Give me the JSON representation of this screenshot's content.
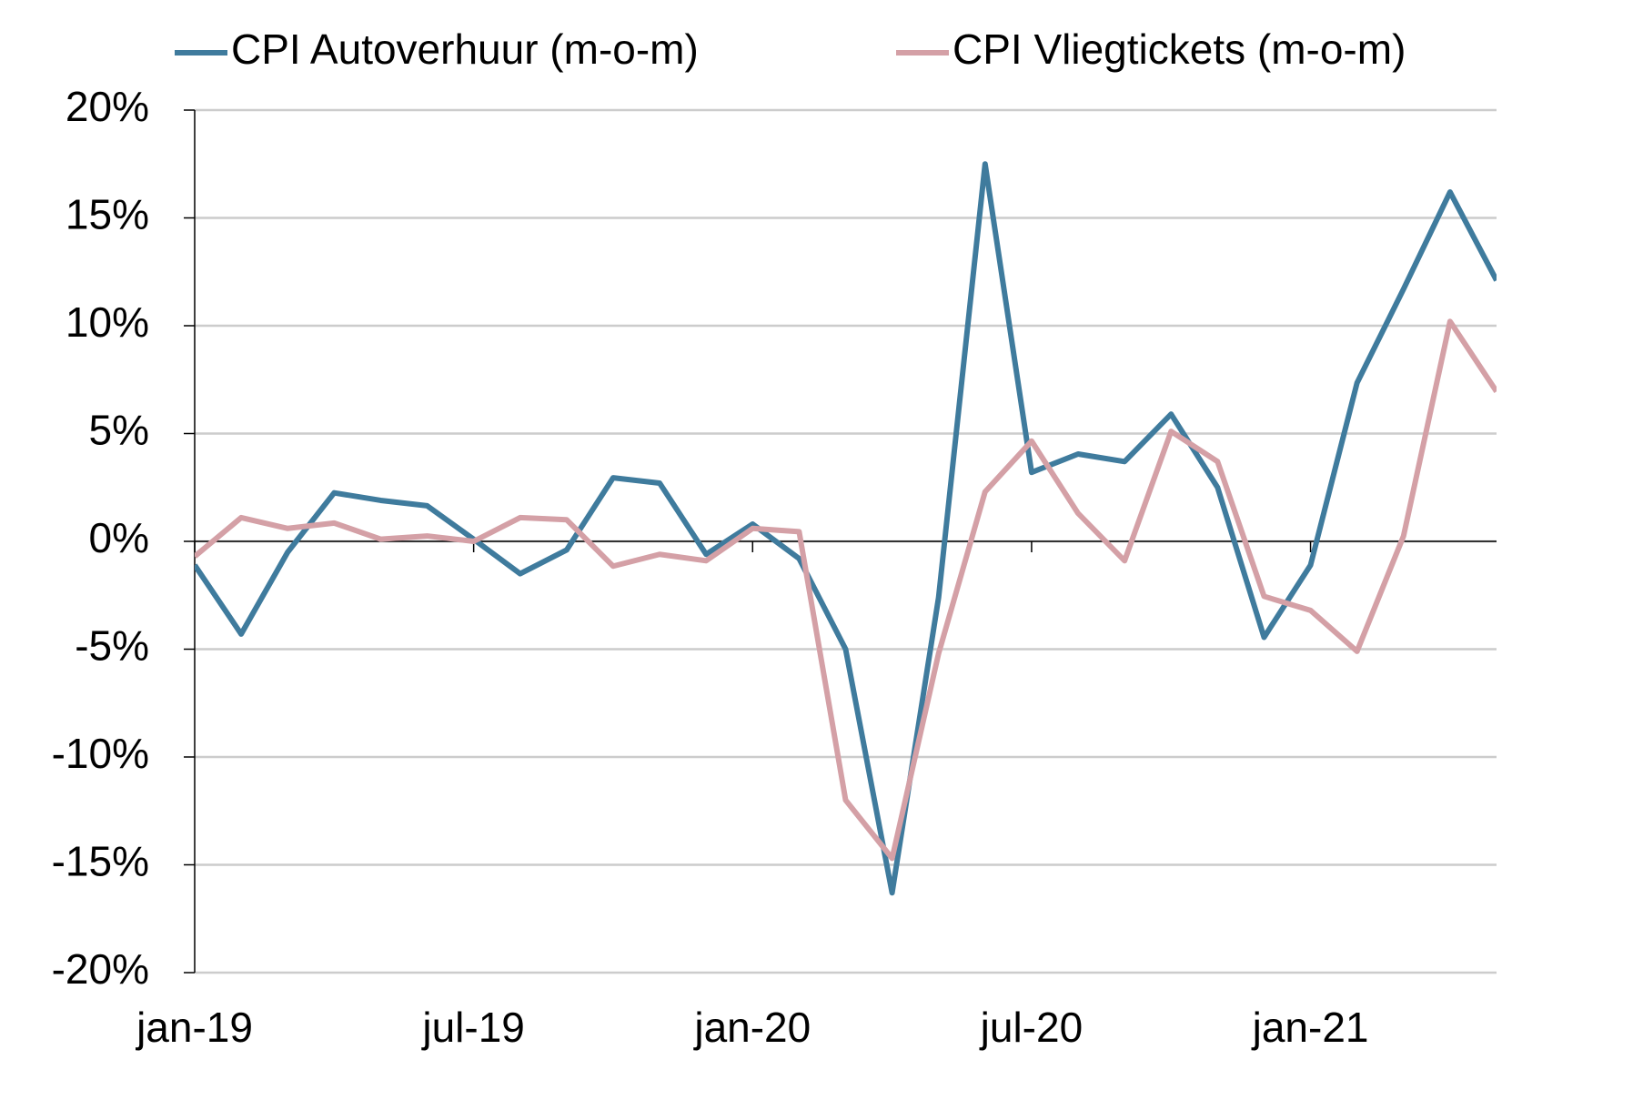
{
  "chart_data": {
    "type": "line",
    "categories": [
      "jan-19",
      null,
      null,
      null,
      null,
      null,
      "jul-19",
      null,
      null,
      null,
      null,
      null,
      "jan-20",
      null,
      null,
      null,
      null,
      null,
      "jul-20",
      null,
      null,
      null,
      null,
      null,
      "jan-21",
      null,
      null,
      null,
      null
    ],
    "series": [
      {
        "name": "CPI Autoverhuur (m-o-m)",
        "color": "#3f7b9d",
        "values": [
          -1.1,
          -4.3,
          -0.5,
          2.25,
          1.9,
          1.65,
          0.1,
          -1.5,
          -0.4,
          2.95,
          2.7,
          -0.6,
          0.8,
          -0.8,
          -5.0,
          -16.3,
          -2.6,
          17.5,
          3.2,
          4.05,
          3.7,
          5.9,
          2.5,
          -4.45,
          -1.1,
          7.35,
          11.7,
          16.2,
          12.1
        ]
      },
      {
        "name": "CPI Vliegtickets (m-o-m)",
        "color": "#d4a0a6",
        "values": [
          -0.7,
          1.1,
          0.6,
          0.85,
          0.1,
          0.25,
          0,
          1.1,
          1.0,
          -1.15,
          -0.6,
          -0.9,
          0.6,
          0.45,
          -12.0,
          -14.7,
          -5.2,
          2.3,
          4.65,
          1.3,
          -0.9,
          5.1,
          3.7,
          -2.55,
          -3.2,
          -5.1,
          0.25,
          10.2,
          6.95
        ]
      }
    ],
    "ylim": [
      -20,
      20
    ],
    "yticks": [
      {
        "value": -20,
        "label": "-20%"
      },
      {
        "value": -15,
        "label": "-15%"
      },
      {
        "value": -10,
        "label": "-10%"
      },
      {
        "value": -5,
        "label": "-5%"
      },
      {
        "value": 0,
        "label": "0%"
      },
      {
        "value": 5,
        "label": "5%"
      },
      {
        "value": 10,
        "label": "10%"
      },
      {
        "value": 15,
        "label": "15%"
      },
      {
        "value": 20,
        "label": "20%"
      }
    ],
    "grid": true,
    "legend": "top"
  }
}
